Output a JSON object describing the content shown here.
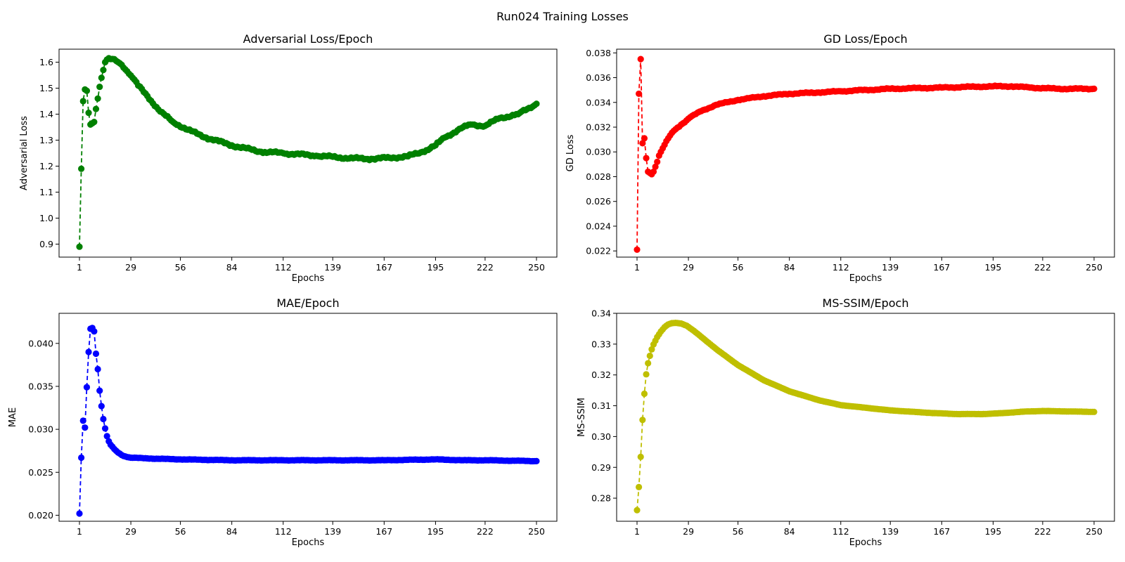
{
  "figure": {
    "title": "Run024 Training Losses"
  },
  "chart_data": [
    {
      "type": "line",
      "title": "Adversarial Loss/Epoch",
      "xlabel": "Epochs",
      "ylabel": "Adversarial Loss",
      "color": "#008000",
      "line_style": "dashed",
      "marker": "circle",
      "grid": false,
      "xlim": [
        1,
        250
      ],
      "ylim": [
        0.85,
        1.65
      ],
      "xticks": [
        1,
        29,
        56,
        84,
        112,
        139,
        167,
        195,
        222,
        250
      ],
      "yticks": [
        0.9,
        1.0,
        1.1,
        1.2,
        1.3,
        1.4,
        1.5,
        1.6
      ],
      "ytick_decimals": 1,
      "keypoints": [
        [
          1,
          0.89
        ],
        [
          2,
          1.19
        ],
        [
          3,
          1.45
        ],
        [
          4,
          1.495
        ],
        [
          5,
          1.49
        ],
        [
          6,
          1.405
        ],
        [
          7,
          1.36
        ],
        [
          8,
          1.365
        ],
        [
          9,
          1.37
        ],
        [
          10,
          1.42
        ],
        [
          11,
          1.46
        ],
        [
          12,
          1.505
        ],
        [
          13,
          1.54
        ],
        [
          14,
          1.57
        ],
        [
          15,
          1.6
        ],
        [
          16,
          1.61
        ],
        [
          18,
          1.612
        ],
        [
          21,
          1.605
        ],
        [
          24,
          1.59
        ],
        [
          27,
          1.565
        ],
        [
          30,
          1.54
        ],
        [
          33,
          1.51
        ],
        [
          38,
          1.47
        ],
        [
          45,
          1.41
        ],
        [
          52,
          1.37
        ],
        [
          60,
          1.34
        ],
        [
          70,
          1.31
        ],
        [
          84,
          1.28
        ],
        [
          100,
          1.255
        ],
        [
          112,
          1.25
        ],
        [
          130,
          1.24
        ],
        [
          150,
          1.23
        ],
        [
          160,
          1.228
        ],
        [
          170,
          1.232
        ],
        [
          180,
          1.238
        ],
        [
          188,
          1.255
        ],
        [
          195,
          1.28
        ],
        [
          200,
          1.31
        ],
        [
          210,
          1.35
        ],
        [
          215,
          1.36
        ],
        [
          222,
          1.355
        ],
        [
          230,
          1.385
        ],
        [
          240,
          1.4
        ],
        [
          245,
          1.42
        ],
        [
          250,
          1.44
        ]
      ],
      "jitter": 0.005
    },
    {
      "type": "line",
      "title": "GD Loss/Epoch",
      "xlabel": "Epochs",
      "ylabel": "GD Loss",
      "color": "#ff0000",
      "line_style": "dashed",
      "marker": "circle",
      "grid": false,
      "xlim": [
        1,
        250
      ],
      "ylim": [
        0.0215,
        0.0383
      ],
      "xticks": [
        1,
        29,
        56,
        84,
        112,
        139,
        167,
        195,
        222,
        250
      ],
      "yticks": [
        0.022,
        0.024,
        0.026,
        0.028,
        0.03,
        0.032,
        0.034,
        0.036,
        0.038
      ],
      "ytick_decimals": 3,
      "keypoints": [
        [
          1,
          0.0221
        ],
        [
          2,
          0.0347
        ],
        [
          3,
          0.0375
        ],
        [
          4,
          0.0307
        ],
        [
          5,
          0.0311
        ],
        [
          6,
          0.0295
        ],
        [
          7,
          0.0284
        ],
        [
          8,
          0.0283
        ],
        [
          9,
          0.0282
        ],
        [
          10,
          0.0284
        ],
        [
          11,
          0.0288
        ],
        [
          12,
          0.0292
        ],
        [
          13,
          0.0297
        ],
        [
          15,
          0.0303
        ],
        [
          18,
          0.0311
        ],
        [
          21,
          0.0317
        ],
        [
          25,
          0.0322
        ],
        [
          30,
          0.0328
        ],
        [
          36,
          0.0333
        ],
        [
          44,
          0.0338
        ],
        [
          56,
          0.0342
        ],
        [
          70,
          0.0345
        ],
        [
          84,
          0.0347
        ],
        [
          100,
          0.0348
        ],
        [
          112,
          0.0349
        ],
        [
          139,
          0.0351
        ],
        [
          167,
          0.0352
        ],
        [
          195,
          0.0353
        ],
        [
          205,
          0.0353
        ],
        [
          215,
          0.0352
        ],
        [
          230,
          0.0351
        ],
        [
          250,
          0.0351
        ]
      ],
      "jitter": 5e-05
    },
    {
      "type": "line",
      "title": "MAE/Epoch",
      "xlabel": "Epochs",
      "ylabel": "MAE",
      "color": "#0000ff",
      "line_style": "dashed",
      "marker": "circle",
      "grid": false,
      "xlim": [
        1,
        250
      ],
      "ylim": [
        0.0193,
        0.0435
      ],
      "xticks": [
        1,
        29,
        56,
        84,
        112,
        139,
        167,
        195,
        222,
        250
      ],
      "yticks": [
        0.02,
        0.025,
        0.03,
        0.035,
        0.04
      ],
      "ytick_decimals": 3,
      "keypoints": [
        [
          1,
          0.0202
        ],
        [
          2,
          0.0267
        ],
        [
          3,
          0.031
        ],
        [
          4,
          0.0302
        ],
        [
          5,
          0.0349
        ],
        [
          6,
          0.039
        ],
        [
          7,
          0.0417
        ],
        [
          8,
          0.0418
        ],
        [
          9,
          0.0414
        ],
        [
          10,
          0.0388
        ],
        [
          11,
          0.037
        ],
        [
          12,
          0.0345
        ],
        [
          13,
          0.0327
        ],
        [
          14,
          0.0312
        ],
        [
          15,
          0.0301
        ],
        [
          16,
          0.0292
        ],
        [
          17,
          0.0286
        ],
        [
          18,
          0.0282
        ],
        [
          20,
          0.0277
        ],
        [
          22,
          0.0273
        ],
        [
          25,
          0.0269
        ],
        [
          29,
          0.0267
        ],
        [
          40,
          0.0266
        ],
        [
          56,
          0.0265
        ],
        [
          84,
          0.0264
        ],
        [
          112,
          0.0264
        ],
        [
          139,
          0.0264
        ],
        [
          167,
          0.0264
        ],
        [
          195,
          0.0265
        ],
        [
          210,
          0.0264
        ],
        [
          222,
          0.0264
        ],
        [
          250,
          0.0263
        ]
      ],
      "jitter": 3e-05
    },
    {
      "type": "line",
      "title": "MS-SSIM/Epoch",
      "xlabel": "Epochs",
      "ylabel": "MS-SSIM",
      "color": "#bfbf00",
      "line_style": "dashed",
      "marker": "circle",
      "grid": false,
      "xlim": [
        1,
        250
      ],
      "ylim": [
        0.2725,
        0.34
      ],
      "xticks": [
        1,
        29,
        56,
        84,
        112,
        139,
        167,
        195,
        222,
        250
      ],
      "yticks": [
        0.28,
        0.29,
        0.3,
        0.31,
        0.32,
        0.33,
        0.34
      ],
      "ytick_decimals": 2,
      "keypoints": [
        [
          1,
          0.2761
        ],
        [
          2,
          0.2836
        ],
        [
          3,
          0.2934
        ],
        [
          4,
          0.3054
        ],
        [
          5,
          0.3139
        ],
        [
          6,
          0.3202
        ],
        [
          7,
          0.3238
        ],
        [
          8,
          0.3262
        ],
        [
          9,
          0.3283
        ],
        [
          10,
          0.3299
        ],
        [
          12,
          0.3323
        ],
        [
          14,
          0.3341
        ],
        [
          16,
          0.3355
        ],
        [
          18,
          0.3364
        ],
        [
          20,
          0.3368
        ],
        [
          22,
          0.3369
        ],
        [
          25,
          0.3367
        ],
        [
          28,
          0.336
        ],
        [
          32,
          0.3343
        ],
        [
          38,
          0.3314
        ],
        [
          45,
          0.328
        ],
        [
          56,
          0.3232
        ],
        [
          70,
          0.3183
        ],
        [
          84,
          0.3147
        ],
        [
          100,
          0.3118
        ],
        [
          112,
          0.3102
        ],
        [
          139,
          0.3085
        ],
        [
          160,
          0.3077
        ],
        [
          175,
          0.3073
        ],
        [
          190,
          0.3073
        ],
        [
          200,
          0.3076
        ],
        [
          212,
          0.3081
        ],
        [
          222,
          0.3083
        ],
        [
          250,
          0.308
        ]
      ],
      "jitter": 3e-05
    }
  ]
}
